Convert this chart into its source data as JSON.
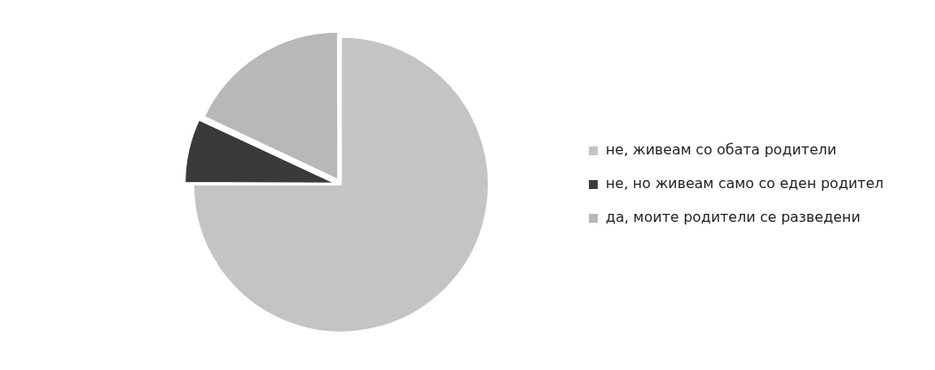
{
  "chart_data": {
    "type": "pie",
    "categories": [
      "не, живеам со обата родители",
      "не, но живеам само со еден родител",
      "да, моите родители се разведени"
    ],
    "values": [
      75,
      7,
      18
    ],
    "colors": [
      "#c4c4c4",
      "#3a3a3a",
      "#b8b8b8"
    ],
    "legend": "right"
  }
}
